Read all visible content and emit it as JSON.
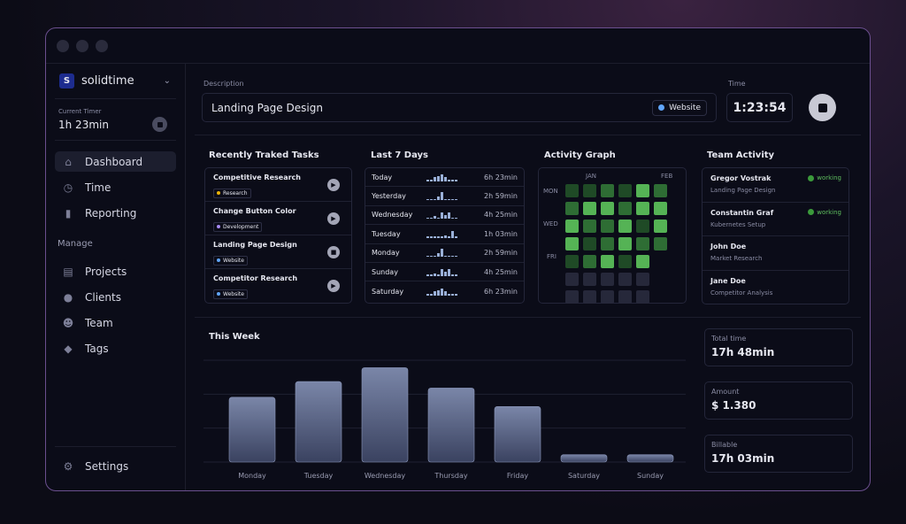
{
  "sidebar": {
    "org": "solidtime",
    "org_initial": "S",
    "current_timer_label": "Current Timer",
    "current_timer": "1h 23min",
    "nav": [
      {
        "label": "Dashboard",
        "icon": "home-icon"
      },
      {
        "label": "Time",
        "icon": "clock-icon"
      },
      {
        "label": "Reporting",
        "icon": "chart-icon"
      }
    ],
    "manage_label": "Manage",
    "manage": [
      {
        "label": "Projects",
        "icon": "folder-icon"
      },
      {
        "label": "Clients",
        "icon": "user-icon"
      },
      {
        "label": "Team",
        "icon": "team-icon"
      },
      {
        "label": "Tags",
        "icon": "tag-icon"
      }
    ],
    "settings": "Settings"
  },
  "timer": {
    "description_label": "Description",
    "description": "Landing Page Design",
    "project": "Website",
    "project_color": "#60a5fa",
    "time_label": "Time",
    "time": "1:23:54"
  },
  "recent": {
    "title": "Recently Traked Tasks",
    "items": [
      {
        "name": "Competitive Research",
        "tag": "Research",
        "color": "#eab308",
        "action": "play"
      },
      {
        "name": "Change Button Color",
        "tag": "Development",
        "color": "#a78bfa",
        "action": "play"
      },
      {
        "name": "Landing Page Design",
        "tag": "Website",
        "color": "#60a5fa",
        "action": "stop"
      },
      {
        "name": "Competitor Research",
        "tag": "Website",
        "color": "#60a5fa",
        "action": "play"
      }
    ]
  },
  "last7": {
    "title": "Last 7 Days",
    "rows": [
      {
        "day": "Today",
        "value": "6h 23min",
        "spark": [
          1,
          1,
          3,
          4,
          5,
          3,
          1,
          1,
          1
        ]
      },
      {
        "day": "Yesterday",
        "value": "2h 59min",
        "spark": [
          1,
          1,
          1,
          3,
          6,
          1,
          1,
          1,
          1
        ]
      },
      {
        "day": "Wednesday",
        "value": "4h 25min",
        "spark": [
          1,
          1,
          2,
          1,
          5,
          3,
          5,
          1,
          1
        ]
      },
      {
        "day": "Tuesday",
        "value": "1h 03min",
        "spark": [
          1,
          1,
          1,
          1,
          1,
          2,
          1,
          5,
          1
        ]
      },
      {
        "day": "Monday",
        "value": "2h 59min",
        "spark": [
          1,
          1,
          1,
          3,
          6,
          1,
          1,
          1,
          1
        ]
      },
      {
        "day": "Sunday",
        "value": "4h 25min",
        "spark": [
          1,
          1,
          2,
          1,
          5,
          3,
          5,
          1,
          1
        ]
      },
      {
        "day": "Saturday",
        "value": "6h 23min",
        "spark": [
          1,
          1,
          3,
          4,
          5,
          3,
          1,
          1,
          1
        ]
      }
    ]
  },
  "activity": {
    "title": "Activity Graph",
    "months": [
      "JAN",
      "FEB"
    ],
    "days": [
      "MON",
      "WED",
      "FRI"
    ],
    "levels": [
      [
        1,
        1,
        2,
        1,
        3,
        2
      ],
      [
        2,
        3,
        3,
        2,
        3,
        3
      ],
      [
        3,
        2,
        2,
        3,
        1,
        3
      ],
      [
        3,
        1,
        2,
        3,
        2,
        2
      ],
      [
        1,
        2,
        3,
        1,
        3,
        null
      ],
      [
        0,
        0,
        0,
        0,
        0,
        null
      ],
      [
        0,
        0,
        0,
        0,
        0,
        null
      ]
    ],
    "colors": [
      "#26283a",
      "#1f4a26",
      "#2e6d34",
      "#55b355"
    ]
  },
  "team": {
    "title": "Team Activity",
    "members": [
      {
        "name": "Gregor Vostrak",
        "task": "Landing Page Design",
        "status": "working"
      },
      {
        "name": "Constantin Graf",
        "task": "Kubernetes Setup",
        "status": "working"
      },
      {
        "name": "John Doe",
        "task": "Market Research",
        "status": ""
      },
      {
        "name": "Jane Doe",
        "task": "Competitor Analysis",
        "status": ""
      }
    ]
  },
  "chart_data": {
    "type": "bar",
    "title": "This Week",
    "categories": [
      "Monday",
      "Tuesday",
      "Wednesday",
      "Thursday",
      "Friday",
      "Saturday",
      "Sunday"
    ],
    "values": [
      70,
      87,
      102,
      80,
      60,
      8,
      8
    ],
    "ylim": [
      0,
      110
    ],
    "grid": true
  },
  "stats": [
    {
      "label": "Total time",
      "value": "17h 48min"
    },
    {
      "label": "Amount",
      "value": "$ 1.380"
    },
    {
      "label": "Billable",
      "value": "17h 03min"
    }
  ]
}
